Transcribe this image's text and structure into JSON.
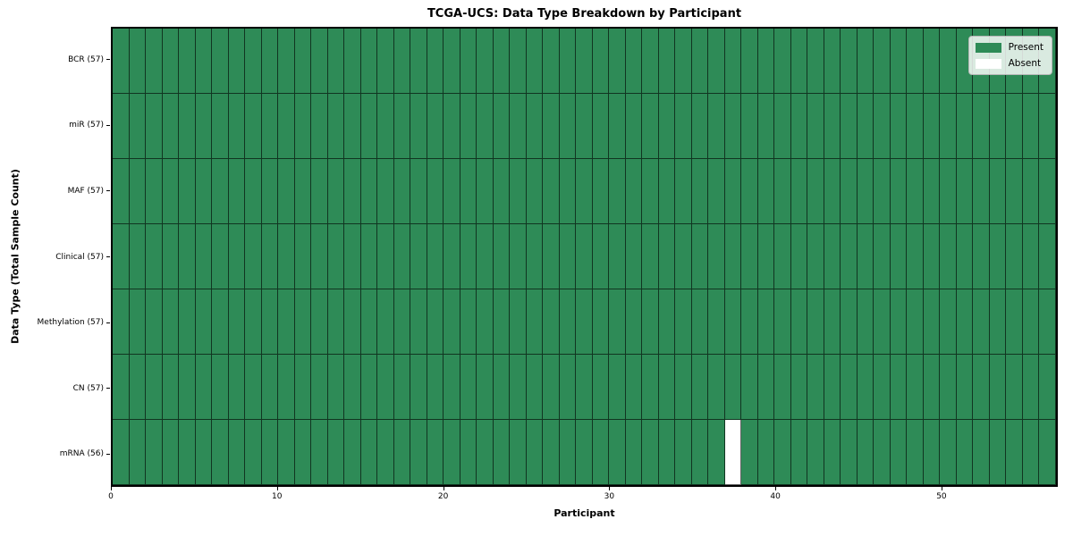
{
  "chart_data": {
    "type": "heatmap",
    "title": "TCGA-UCS: Data Type Breakdown by Participant",
    "xlabel": "Participant",
    "ylabel": "Data Type (Total Sample Count)",
    "n_participants": 57,
    "x_ticks": [
      0,
      10,
      20,
      30,
      40,
      50
    ],
    "x_range": [
      0,
      57
    ],
    "rows": [
      {
        "label": "BCR (57)",
        "data_type": "BCR",
        "total": 57,
        "absent_participants": []
      },
      {
        "label": "miR (57)",
        "data_type": "miR",
        "total": 57,
        "absent_participants": []
      },
      {
        "label": "MAF (57)",
        "data_type": "MAF",
        "total": 57,
        "absent_participants": []
      },
      {
        "label": "Clinical (57)",
        "data_type": "Clinical",
        "total": 57,
        "absent_participants": []
      },
      {
        "label": "Methylation (57)",
        "data_type": "Methylation",
        "total": 57,
        "absent_participants": []
      },
      {
        "label": "CN (57)",
        "data_type": "CN",
        "total": 57,
        "absent_participants": []
      },
      {
        "label": "mRNA (56)",
        "data_type": "mRNA",
        "total": 56,
        "absent_participants": [
          37
        ]
      }
    ],
    "legend": [
      {
        "label": "Present",
        "color": "#2e8b57"
      },
      {
        "label": "Absent",
        "color": "#ffffff"
      }
    ],
    "colors": {
      "present": "#2e8b57",
      "absent": "#ffffff",
      "cell_edge": "#1c1c1c",
      "plot_border": "#000000",
      "background": "#ffffff",
      "legend_background": "#f2f2f2",
      "legend_border": "#b7b7b7"
    },
    "legend_position": "upper right",
    "grid": "cell-edges"
  }
}
